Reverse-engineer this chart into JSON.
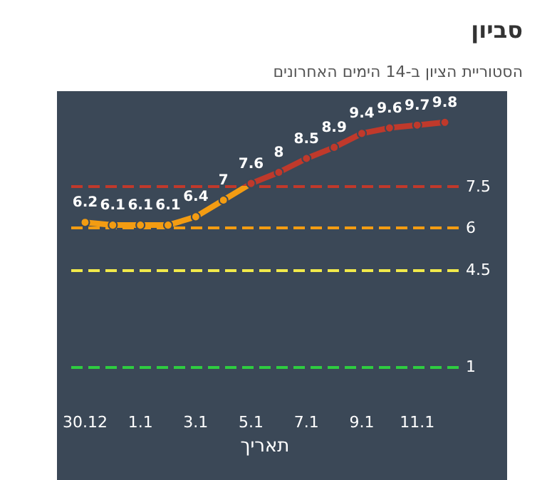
{
  "chart_data": {
    "type": "line",
    "title": "סביון",
    "subtitle": "הסטוריית הציון ב-14 הימים האחרונים",
    "xlabel": "תאריך",
    "categories": [
      "30.12",
      null,
      "1.1",
      null,
      "3.1",
      null,
      "5.1",
      null,
      "7.1",
      null,
      "9.1",
      null,
      "11.1",
      null
    ],
    "series": [
      {
        "values": [
          6.2,
          6.1,
          6.1,
          6.1,
          6.4,
          7,
          7.6,
          8,
          8.5,
          8.9,
          9.4,
          9.6,
          9.7,
          9.8
        ]
      }
    ],
    "tick_labels": "x",
    "grid": false,
    "marker": "circle",
    "line_style": "solid",
    "data_labels": true,
    "ref_lines": [
      {
        "axis": "y",
        "value": 7.5,
        "label": "7.5",
        "color": "#c0392b",
        "line_style": "dashed"
      },
      {
        "axis": "y",
        "value": 6,
        "label": "6",
        "color": "#f39c12",
        "line_style": "dashed"
      },
      {
        "axis": "y",
        "value": 4.5,
        "label": "4.5",
        "color": "#f1e94a",
        "line_style": "dashed"
      },
      {
        "axis": "y",
        "value": 1,
        "label": "1",
        "color": "#2ecc40",
        "line_style": "dashed"
      }
    ]
  }
}
